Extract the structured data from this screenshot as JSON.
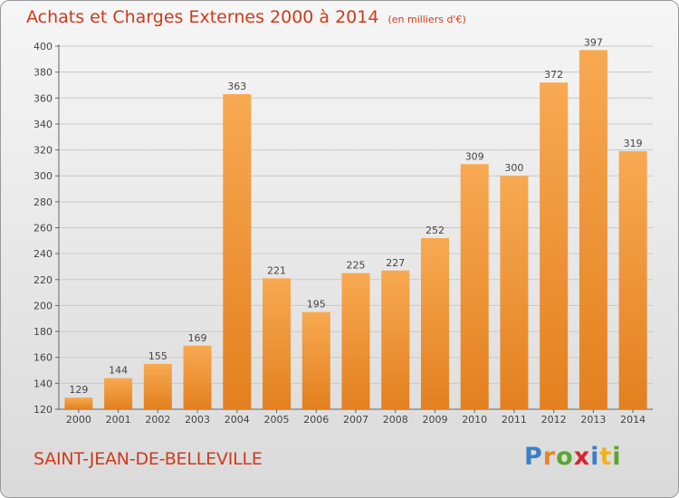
{
  "header": {
    "title": "Achats et Charges Externes 2000 à 2014",
    "unit": "(en milliers d'€)"
  },
  "footer": {
    "commune": "SAINT-JEAN-DE-BELLEVILLE",
    "logo": "Proxiti"
  },
  "colors": {
    "title": "#d03a1a",
    "bar_light": "#f7a651",
    "bar_dark": "#e47f1d",
    "grid": "#c8c8c8"
  },
  "chart_data": {
    "type": "bar",
    "title": "Achats et Charges Externes 2000 à 2014",
    "subtitle": "(en milliers d'€)",
    "categories": [
      "2000",
      "2001",
      "2002",
      "2003",
      "2004",
      "2005",
      "2006",
      "2007",
      "2008",
      "2009",
      "2010",
      "2011",
      "2012",
      "2013",
      "2014"
    ],
    "values": [
      129,
      144,
      155,
      169,
      363,
      221,
      195,
      225,
      227,
      252,
      309,
      300,
      372,
      397,
      319
    ],
    "ylim": [
      120,
      400
    ],
    "yticks": [
      120,
      140,
      160,
      180,
      200,
      220,
      240,
      260,
      280,
      300,
      320,
      340,
      360,
      380,
      400
    ],
    "grid": true,
    "data_labels": true
  }
}
